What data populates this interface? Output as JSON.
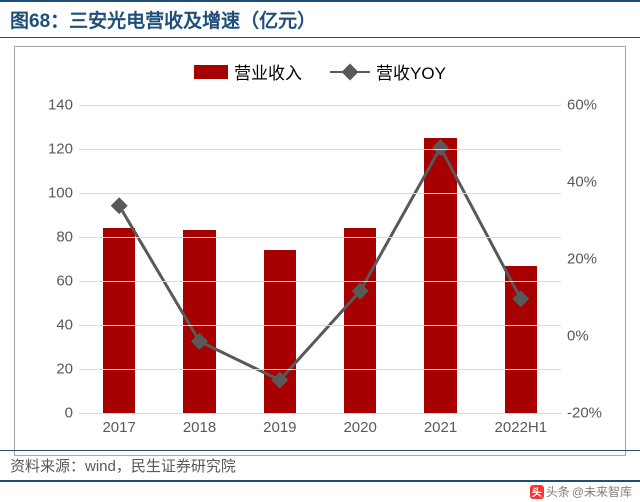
{
  "title": "图68：三安光电营收及增速（亿元）",
  "title_color": "#1f4e79",
  "border_color": "#1f4e79",
  "chart_border_color": "#a6a6a6",
  "chart_background": "#ffffff",
  "grid_color": "#d9d9d9",
  "axis_label_color": "#595959",
  "axis_fontsize": 15,
  "legend": {
    "bar_label": "营业收入",
    "line_label": "营收YOY",
    "fontsize": 17
  },
  "series": {
    "categories": [
      "2017",
      "2018",
      "2019",
      "2020",
      "2021",
      "2022H1"
    ],
    "bar_values": [
      84,
      83,
      74,
      84,
      125,
      67
    ],
    "bar_color": "#a60000",
    "bar_width_frac": 0.4,
    "line_values": [
      34,
      -1,
      -11,
      12,
      49,
      10
    ],
    "line_color": "#595959",
    "line_width": 3,
    "marker_size": 12,
    "marker_shape": "diamond"
  },
  "y_left": {
    "min": 0,
    "max": 140,
    "step": 20,
    "ticks": [
      0,
      20,
      40,
      60,
      80,
      100,
      120,
      140
    ]
  },
  "y_right": {
    "min": -20,
    "max": 60,
    "step": 20,
    "ticks": [
      -20,
      0,
      20,
      40,
      60
    ],
    "suffix": "%"
  },
  "source": "资料来源：wind，民生证券研究院",
  "source_color": "#595959",
  "watermark": {
    "prefix": "头条",
    "account": "@未来智库",
    "icon_bg": "#ff3333",
    "icon_fg": "#ffffff",
    "icon_text": "头",
    "text_color": "#808080"
  }
}
